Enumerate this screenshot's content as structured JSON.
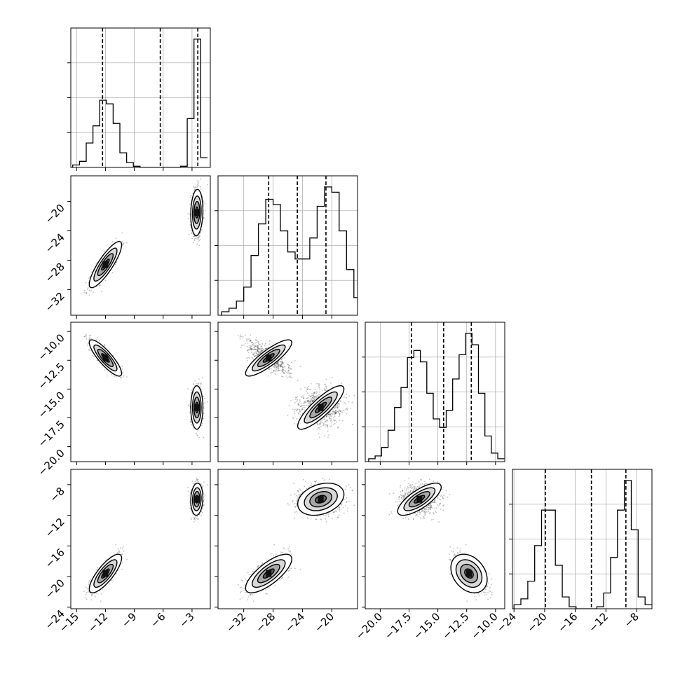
{
  "chart_data": {
    "type": "corner",
    "dimensions": 4,
    "axis_ticks": [
      {
        "ticks": [
          -15,
          -12,
          -9,
          -6,
          -3
        ],
        "labels": [
          "−15",
          "−12",
          "−9",
          "−6",
          "−3"
        ],
        "range": [
          -15.6,
          -1.1
        ]
      },
      {
        "ticks": [
          -32,
          -28,
          -24,
          -20
        ],
        "labels": [
          "−32",
          "−28",
          "−24",
          "−20"
        ],
        "range": [
          -35.5,
          -16.5
        ]
      },
      {
        "ticks": [
          -20.0,
          -17.5,
          -15.0,
          -12.5,
          -10.0
        ],
        "labels": [
          "−20.0",
          "−17.5",
          "−15.0",
          "−12.5",
          "−10.0"
        ],
        "range": [
          -21.3,
          -9.2
        ]
      },
      {
        "ticks": [
          -24,
          -20,
          -16,
          -12,
          -8
        ],
        "labels": [
          "−24",
          "−20",
          "−16",
          "−12",
          "−8"
        ],
        "range": [
          -24.2,
          -6.0
        ]
      }
    ],
    "quantiles": [
      [
        -12.3,
        -6.3,
        -2.4
      ],
      [
        -28.6,
        -24.7,
        -20.8
      ],
      [
        -17.3,
        -14.5,
        -12.1
      ],
      [
        -19.9,
        -13.9,
        -9.4
      ]
    ],
    "histograms": [
      {
        "bin_start": -15.4,
        "bin_width": 0.7,
        "counts": [
          2,
          5,
          20,
          34,
          55,
          52,
          36,
          12,
          4,
          1,
          0,
          0,
          0,
          0,
          0,
          0,
          1,
          40,
          105,
          8
        ]
      },
      {
        "bin_start": -35.0,
        "bin_width": 1.0,
        "counts": [
          2,
          4,
          8,
          16,
          34,
          52,
          66,
          63,
          48,
          36,
          32,
          32,
          44,
          62,
          73,
          70,
          48,
          26,
          10,
          4
        ]
      },
      {
        "bin_start": -21.0,
        "bin_width": 0.56,
        "counts": [
          2,
          4,
          10,
          22,
          38,
          52,
          73,
          78,
          70,
          48,
          30,
          24,
          36,
          58,
          75,
          90,
          82,
          48,
          18,
          6,
          2
        ]
      },
      {
        "bin_start": -24.0,
        "bin_width": 0.9,
        "counts": [
          2,
          5,
          14,
          32,
          50,
          50,
          22,
          6,
          1,
          0,
          0,
          0,
          1,
          8,
          26,
          50,
          65,
          40,
          6,
          2
        ]
      }
    ],
    "scatter_modes": [
      {
        "w": 0.42,
        "mean": [
          -12.0,
          -28.6,
          -12.3,
          -19.6
        ],
        "sd": [
          0.8,
          1.5,
          0.75,
          1.2
        ]
      },
      {
        "w": 0.58,
        "mean": [
          -2.5,
          -21.5,
          -16.6,
          -9.9
        ],
        "sd": [
          0.3,
          1.5,
          0.9,
          1.0
        ]
      }
    ],
    "title": "",
    "xlabel": "",
    "ylabel": ""
  }
}
